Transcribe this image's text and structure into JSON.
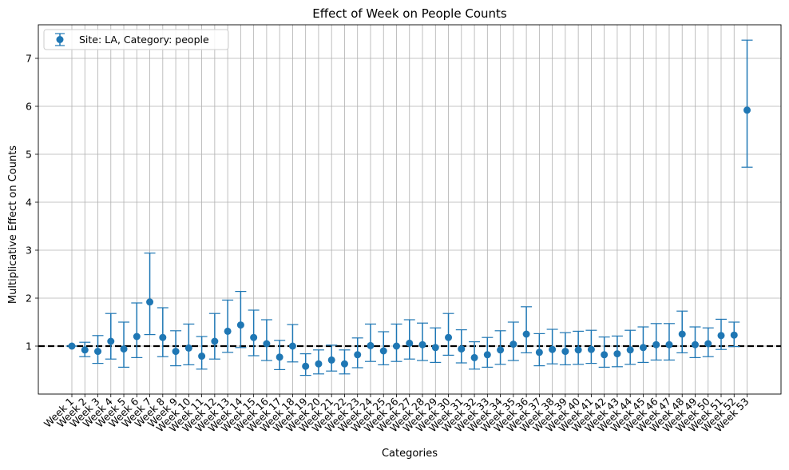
{
  "chart_data": {
    "type": "scatter",
    "title": "Effect of Week on People Counts",
    "xlabel": "Categories",
    "ylabel": "Multiplicative Effect on Counts",
    "ylim": [
      0.0,
      7.7
    ],
    "yticks": [
      1,
      2,
      3,
      4,
      5,
      6,
      7
    ],
    "grid": true,
    "legend_position": "top-left",
    "reference_line": {
      "y": 1.0,
      "style": "dashed",
      "color": "#000000"
    },
    "categories": [
      "Week 1",
      "Week 2",
      "Week 3",
      "Week 4",
      "Week 5",
      "Week 6",
      "Week 7",
      "Week 8",
      "Week 9",
      "Week 10",
      "Week 11",
      "Week 12",
      "Week 13",
      "Week 14",
      "Week 15",
      "Week 16",
      "Week 17",
      "Week 18",
      "Week 19",
      "Week 20",
      "Week 21",
      "Week 22",
      "Week 23",
      "Week 24",
      "Week 25",
      "Week 26",
      "Week 27",
      "Week 28",
      "Week 29",
      "Week 30",
      "Week 31",
      "Week 32",
      "Week 33",
      "Week 34",
      "Week 35",
      "Week 36",
      "Week 37",
      "Week 38",
      "Week 39",
      "Week 40",
      "Week 41",
      "Week 42",
      "Week 43",
      "Week 44",
      "Week 45",
      "Week 46",
      "Week 47",
      "Week 48",
      "Week 49",
      "Week 50",
      "Week 51",
      "Week 52",
      "Week 53"
    ],
    "series": [
      {
        "name": "Site: LA, Category: people",
        "color": "#1f77b4",
        "values": [
          1.0,
          0.92,
          0.89,
          1.1,
          0.94,
          1.2,
          1.92,
          1.18,
          0.89,
          0.96,
          0.79,
          1.1,
          1.31,
          1.44,
          1.18,
          1.05,
          0.77,
          1.0,
          0.58,
          0.63,
          0.71,
          0.63,
          0.82,
          1.01,
          0.9,
          1.0,
          1.06,
          1.03,
          0.97,
          1.18,
          0.94,
          0.76,
          0.82,
          0.92,
          1.04,
          1.25,
          0.87,
          0.93,
          0.89,
          0.92,
          0.93,
          0.82,
          0.84,
          0.92,
          0.97,
          1.03,
          1.03,
          1.25,
          1.03,
          1.05,
          1.22,
          1.23,
          5.92
        ],
        "lower": [
          1.0,
          0.78,
          0.64,
          0.73,
          0.56,
          0.76,
          1.24,
          0.78,
          0.59,
          0.61,
          0.52,
          0.73,
          0.87,
          0.97,
          0.8,
          0.7,
          0.51,
          0.67,
          0.39,
          0.42,
          0.48,
          0.42,
          0.55,
          0.68,
          0.61,
          0.68,
          0.73,
          0.7,
          0.66,
          0.81,
          0.65,
          0.52,
          0.56,
          0.62,
          0.7,
          0.86,
          0.59,
          0.63,
          0.61,
          0.62,
          0.64,
          0.56,
          0.57,
          0.62,
          0.66,
          0.71,
          0.71,
          0.86,
          0.76,
          0.78,
          0.93,
          0.99,
          4.73
        ],
        "upper": [
          1.0,
          1.08,
          1.22,
          1.68,
          1.5,
          1.9,
          2.94,
          1.8,
          1.32,
          1.46,
          1.2,
          1.68,
          1.96,
          2.14,
          1.75,
          1.55,
          1.12,
          1.45,
          0.84,
          0.92,
          1.02,
          0.92,
          1.17,
          1.46,
          1.3,
          1.46,
          1.55,
          1.48,
          1.38,
          1.68,
          1.34,
          1.09,
          1.18,
          1.32,
          1.5,
          1.82,
          1.26,
          1.35,
          1.28,
          1.31,
          1.33,
          1.19,
          1.21,
          1.33,
          1.4,
          1.47,
          1.47,
          1.73,
          1.4,
          1.38,
          1.56,
          1.5,
          7.38
        ]
      }
    ]
  }
}
